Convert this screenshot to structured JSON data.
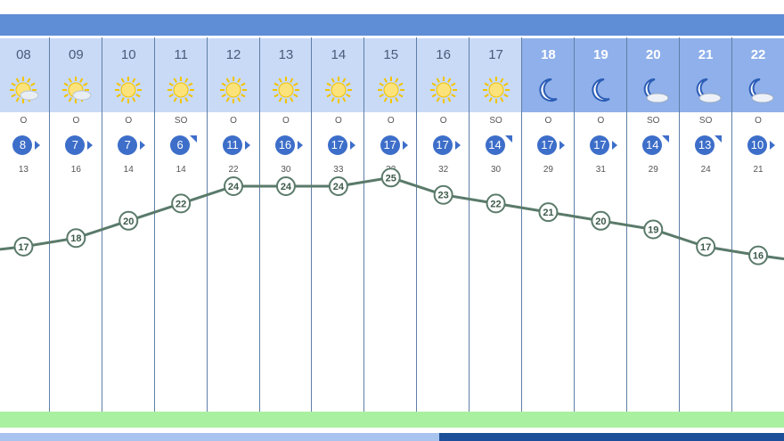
{
  "chart_data": {
    "type": "line",
    "hours": [
      "08",
      "09",
      "10",
      "11",
      "12",
      "13",
      "14",
      "15",
      "16",
      "17",
      "18",
      "19",
      "20",
      "21",
      "22"
    ],
    "sky": [
      "sun-cloud",
      "sun-cloud",
      "sun",
      "sun",
      "sun",
      "sun",
      "sun",
      "sun",
      "sun",
      "sun",
      "moon",
      "moon",
      "moon-cloud",
      "moon-cloud",
      "moon-cloud"
    ],
    "night": [
      false,
      false,
      false,
      false,
      false,
      false,
      false,
      false,
      false,
      false,
      true,
      true,
      true,
      true,
      true
    ],
    "wind_dir": [
      "O",
      "O",
      "O",
      "SO",
      "O",
      "O",
      "O",
      "O",
      "O",
      "SO",
      "O",
      "O",
      "SO",
      "SO",
      "O"
    ],
    "wind_speed": [
      "8",
      "7",
      "7",
      "6",
      "11",
      "16",
      "17",
      "17",
      "17",
      "14",
      "17",
      "17",
      "14",
      "13",
      "10"
    ],
    "gusts": [
      "13",
      "16",
      "14",
      "14",
      "22",
      "30",
      "33",
      "33",
      "32",
      "30",
      "29",
      "31",
      "29",
      "24",
      "21"
    ],
    "temperature": [
      17,
      18,
      20,
      22,
      24,
      24,
      24,
      25,
      23,
      22,
      21,
      20,
      19,
      17,
      16
    ],
    "temperature_labels": [
      "17",
      "18",
      "20",
      "22",
      "24",
      "24",
      "24",
      "25",
      "23",
      "22",
      "21",
      "20",
      "19",
      "17",
      "16"
    ],
    "colors": {
      "header_day": "#c9daf6",
      "header_night": "#8fb0ea",
      "top_bar": "#5f8dd6",
      "wind_badge": "#3d6ec9",
      "line": "#5a7a6a",
      "green_bar": "#a9f0a0"
    }
  }
}
